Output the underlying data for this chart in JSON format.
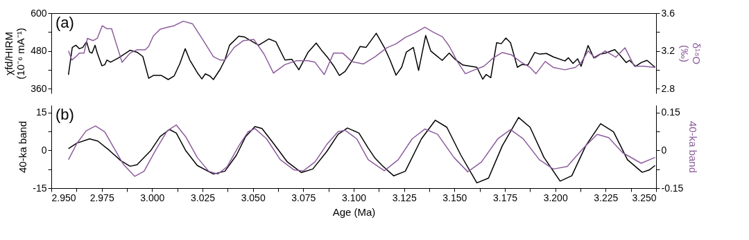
{
  "chart_data": [
    {
      "type": "line",
      "title": "(a)",
      "ylabel": "χfd/HIRM (10⁻⁶ mA⁻¹)",
      "y2label": "δ¹⁸O (‰)",
      "tick_labels": "y",
      "xlim": [
        2.95,
        3.25
      ],
      "ylim": [
        345,
        600
      ],
      "yticks": [
        360,
        {
          "value": 420,
          "label": null
        },
        480,
        {
          "value": 540,
          "label": null
        },
        600
      ],
      "y2lim": [
        2.75,
        3.6
      ],
      "y2ticks": [
        2.8,
        {
          "value": 3.0,
          "label": null
        },
        3.2,
        {
          "value": 3.4,
          "label": null
        },
        3.6
      ],
      "series": [
        {
          "color": "#000000",
          "x": [
            2.9585,
            2.9604,
            2.9622,
            2.9639,
            2.9656,
            2.9675,
            2.969,
            2.9702,
            2.9717,
            2.9728,
            2.9751,
            2.9765,
            2.9776,
            2.9794,
            2.9834,
            2.9891,
            2.9925,
            2.9954,
            2.9983,
            3.0006,
            3.0046,
            3.008,
            3.0109,
            3.0138,
            3.0164,
            3.0187,
            3.0224,
            3.0247,
            3.0264,
            3.0287,
            3.0304,
            3.0338,
            3.0361,
            3.0384,
            3.043,
            3.0459,
            3.0499,
            3.0528,
            3.0579,
            3.0614,
            3.0659,
            3.0694,
            3.0728,
            3.0774,
            3.0814,
            3.0843,
            3.0872,
            3.09,
            3.0929,
            3.0958,
            3.0998,
            3.1032,
            3.1061,
            3.1112,
            3.1152,
            3.1181,
            3.121,
            3.1238,
            3.1261,
            3.1296,
            3.1322,
            3.1357,
            3.1382,
            3.141,
            3.1439,
            3.1474,
            3.1502,
            3.1542,
            3.1611,
            3.164,
            3.1657,
            3.168,
            3.1709,
            3.1732,
            3.1755,
            3.1778,
            3.1812,
            3.1835,
            3.1864,
            3.1898,
            3.1921,
            3.1956,
            3.199,
            3.2048,
            3.2065,
            3.2088,
            3.2111,
            3.2128,
            3.2163,
            3.2191,
            3.222,
            3.2249,
            3.2295,
            3.2323,
            3.2352,
            3.2369,
            3.2398,
            3.2427,
            3.2455,
            3.2495
          ],
          "values": [
            404,
            491,
            498,
            487,
            491,
            509,
            476,
            473,
            498,
            473,
            433,
            436,
            451,
            444,
            458,
            482,
            476,
            462,
            393,
            402,
            402,
            389,
            400,
            440,
            487,
            451,
            411,
            391,
            407,
            400,
            389,
            422,
            451,
            498,
            527,
            524,
            509,
            498,
            518,
            509,
            451,
            453,
            420,
            476,
            505,
            480,
            458,
            433,
            402,
            415,
            455,
            494,
            491,
            536,
            491,
            450,
            403,
            428,
            476,
            491,
            418,
            529,
            480,
            465,
            450,
            473,
            454,
            435,
            428,
            390,
            405,
            395,
            506,
            503,
            521,
            506,
            428,
            437,
            435,
            475,
            470,
            472,
            461,
            448,
            458,
            440,
            455,
            431,
            497,
            458,
            469,
            473,
            484,
            465,
            443,
            450,
            431,
            443,
            450,
            428
          ],
          "axis": "y"
        },
        {
          "color": "#8c5c9c",
          "x": [
            2.9585,
            2.9602,
            2.9622,
            2.9639,
            2.9662,
            2.9679,
            2.9708,
            2.9728,
            2.9753,
            2.9776,
            2.9799,
            2.9851,
            2.9891,
            2.9925,
            2.9966,
            2.9983,
            3.0006,
            3.004,
            3.0075,
            3.0109,
            3.0155,
            3.0201,
            3.0247,
            3.0304,
            3.0338,
            3.0361,
            3.0407,
            3.0453,
            3.0505,
            3.0556,
            3.0602,
            3.0659,
            3.0717,
            3.0774,
            3.0808,
            3.0854,
            3.09,
            3.0946,
            3.0992,
            3.1049,
            3.1107,
            3.1164,
            3.121,
            3.1256,
            3.1302,
            3.1353,
            3.1394,
            3.144,
            3.1474,
            3.1514,
            3.1554,
            3.16,
            3.1646,
            3.1692,
            3.1737,
            3.1783,
            3.1829,
            3.1875,
            3.1904,
            3.195,
            3.199,
            3.2048,
            3.2099,
            3.2128,
            3.2163,
            3.2197,
            3.2248,
            3.23,
            3.2346,
            3.2392,
            3.2438,
            3.2495
          ],
          "values": [
            3.2,
            3.103,
            3.139,
            3.176,
            3.176,
            3.333,
            3.309,
            3.333,
            3.467,
            3.435,
            3.435,
            3.079,
            3.176,
            3.212,
            3.212,
            3.248,
            3.358,
            3.43,
            3.45,
            3.467,
            3.515,
            3.486,
            3.333,
            3.139,
            3.103,
            3.103,
            3.236,
            3.309,
            3.321,
            3.164,
            2.965,
            3.055,
            3.096,
            3.096,
            3.079,
            2.95,
            3.176,
            3.176,
            3.086,
            3.062,
            3.139,
            3.233,
            3.275,
            3.343,
            3.388,
            3.45,
            3.4,
            3.35,
            3.25,
            3.088,
            2.958,
            3.0,
            3.038,
            3.125,
            3.183,
            3.158,
            3.083,
            3.025,
            2.958,
            3.088,
            3.025,
            3.0,
            3.025,
            3.075,
            3.2,
            3.125,
            3.2,
            3.133,
            3.233,
            3.038,
            3.038,
            3.025
          ],
          "axis": "y2"
        }
      ]
    },
    {
      "type": "line",
      "title": "(b)",
      "ylabel": "40-ka band",
      "y2label": "40-ka band",
      "xlabel": "Age (Ma)",
      "xlim": [
        2.95,
        3.25
      ],
      "xticks": [
        {
          "value": 2.95,
          "label": "2.950"
        },
        {
          "value": 2.9625,
          "label": null
        },
        {
          "value": 2.975,
          "label": "2.975"
        },
        {
          "value": 2.9875,
          "label": null
        },
        {
          "value": 3.0,
          "label": "3.000"
        },
        {
          "value": 3.0125,
          "label": null
        },
        {
          "value": 3.025,
          "label": "3.025"
        },
        {
          "value": 3.0375,
          "label": null
        },
        {
          "value": 3.05,
          "label": "3.050"
        },
        {
          "value": 3.0625,
          "label": null
        },
        {
          "value": 3.075,
          "label": "3.075"
        },
        {
          "value": 3.0875,
          "label": null
        },
        {
          "value": 3.1,
          "label": "3.100"
        },
        {
          "value": 3.1125,
          "label": null
        },
        {
          "value": 3.125,
          "label": "3.125"
        },
        {
          "value": 3.1375,
          "label": null
        },
        {
          "value": 3.15,
          "label": "3.150"
        },
        {
          "value": 3.1625,
          "label": null
        },
        {
          "value": 3.175,
          "label": "3.175"
        },
        {
          "value": 3.1875,
          "label": null
        },
        {
          "value": 3.2,
          "label": "3.200"
        },
        {
          "value": 3.2125,
          "label": null
        },
        {
          "value": 3.225,
          "label": "3.225"
        },
        {
          "value": 3.2375,
          "label": null
        },
        {
          "value": 3.25,
          "label": "3.250"
        }
      ],
      "ylim": [
        -15,
        18
      ],
      "yticks": [
        -15,
        {
          "value": -7.5,
          "label": null
        },
        0,
        {
          "value": 7.5,
          "label": null
        },
        15
      ],
      "y2lim": [
        -0.15,
        0.18
      ],
      "y2ticks": [
        -0.15,
        {
          "value": -0.075,
          "label": null
        },
        0,
        {
          "value": 0.075,
          "label": null
        },
        0.15
      ],
      "series": [
        {
          "color": "#000000",
          "x": [
            2.9585,
            2.9627,
            2.969,
            2.9731,
            2.9788,
            2.9845,
            2.9891,
            2.9925,
            2.9994,
            3.004,
            3.0086,
            3.012,
            3.0166,
            3.0224,
            3.0304,
            3.0361,
            3.0419,
            3.0464,
            3.051,
            3.0545,
            3.0602,
            3.0671,
            3.074,
            3.0797,
            3.0866,
            3.0923,
            3.0969,
            3.1026,
            3.1072,
            3.1107,
            3.1141,
            3.1198,
            3.1256,
            3.1336,
            3.1405,
            3.1462,
            3.1531,
            3.1611,
            3.1669,
            3.1737,
            3.1818,
            3.1875,
            3.1944,
            3.2024,
            3.2082,
            3.2151,
            3.2225,
            3.2289,
            3.2358,
            3.2431,
            3.2466,
            3.2495
          ],
          "values": [
            0.7,
            2.9,
            4.6,
            3.7,
            0,
            -4.1,
            -6.3,
            -5.7,
            0,
            5.5,
            8.3,
            6.9,
            0,
            -6.0,
            -9.4,
            -8.3,
            -1.8,
            5.5,
            9.5,
            8.7,
            2.8,
            -4.6,
            -8.8,
            -7.4,
            -0.5,
            6.4,
            8.9,
            6.9,
            0.9,
            -3.2,
            -6.0,
            -10.1,
            -8.3,
            4.6,
            12.0,
            9.2,
            -1.8,
            -12.9,
            -11.0,
            1.8,
            13.1,
            9.2,
            -2.8,
            -12.2,
            -10.1,
            1.8,
            10.6,
            7.4,
            -3.7,
            -8.7,
            -7.8,
            -6.0
          ],
          "axis": "y"
        },
        {
          "color": "#8c5c9c",
          "x": [
            2.9585,
            2.9627,
            2.9673,
            2.9719,
            2.9765,
            2.9811,
            2.9857,
            2.9914,
            2.996,
            3.0017,
            3.0075,
            3.012,
            3.0166,
            3.0224,
            3.0281,
            3.0327,
            3.0373,
            3.043,
            3.0476,
            3.051,
            3.0568,
            3.0636,
            3.0705,
            3.0751,
            3.0808,
            3.0866,
            3.0923,
            3.0958,
            3.1015,
            3.1072,
            3.1152,
            3.1221,
            3.129,
            3.1353,
            3.1416,
            3.1497,
            3.1566,
            3.1634,
            3.1715,
            3.1778,
            3.1841,
            3.1921,
            3.199,
            3.2059,
            3.2139,
            3.2208,
            3.2265,
            3.2334,
            3.2426,
            3.2495
          ],
          "values": [
            -0.037,
            0.028,
            0.078,
            0.097,
            0.074,
            0.009,
            -0.055,
            -0.103,
            -0.083,
            0,
            0.078,
            0.101,
            0.055,
            -0.028,
            -0.083,
            -0.094,
            -0.064,
            0.018,
            0.074,
            0.087,
            0.046,
            -0.037,
            -0.078,
            -0.081,
            -0.046,
            0.023,
            0.075,
            0.08,
            0.046,
            -0.037,
            -0.081,
            -0.037,
            0.046,
            0.085,
            0.064,
            -0.028,
            -0.085,
            -0.046,
            0.046,
            0.083,
            0.046,
            -0.037,
            -0.074,
            -0.064,
            0.009,
            0.064,
            0.051,
            -0.009,
            -0.051,
            -0.028
          ],
          "axis": "y2"
        }
      ]
    }
  ]
}
